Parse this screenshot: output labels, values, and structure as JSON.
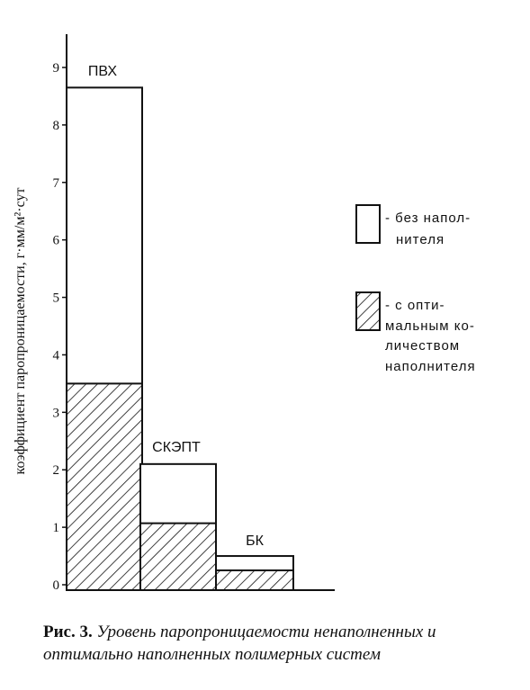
{
  "chart_data": {
    "type": "bar",
    "ylabel": "коэффициент паропроницаемости, г·мм/м²·сут",
    "ylim": [
      0,
      9
    ],
    "yticks": [
      "0",
      "1",
      "2",
      "3",
      "4",
      "5",
      "6",
      "7",
      "8",
      "9"
    ],
    "categories": [
      "ПВХ",
      "СКЭПТ",
      "БК"
    ],
    "series": [
      {
        "name": "- без наполнителя",
        "values": [
          8.65,
          2.1,
          0.5
        ],
        "fill": "#ffffff"
      },
      {
        "name": "- с оптимальным количеством наполнителя",
        "values": [
          3.5,
          1.07,
          0.25
        ],
        "fill": "hatch"
      }
    ],
    "grid": false,
    "legend": "right"
  },
  "legend_lines": {
    "no_filler": [
      "- без напол-",
      "нителя"
    ],
    "with_filler": [
      "- с опти-",
      "мальным ко-",
      "личеством",
      "наполнителя"
    ]
  },
  "caption": {
    "label": "Рис. 3.",
    "text": "Уровень паропроницаемости ненаполненных и оптимально наполненных полимерных систем"
  },
  "colors": {
    "ink": "#111111",
    "background": "#ffffff"
  }
}
